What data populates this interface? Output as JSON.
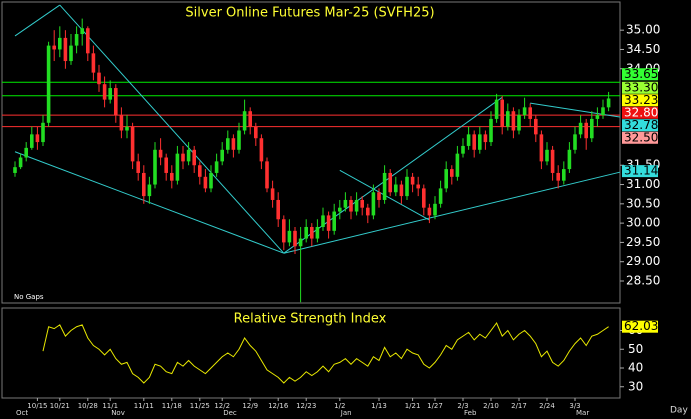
{
  "chart_data": {
    "type": "candlestick",
    "title": "Silver Online Futures Mar-25 (SVFH25)",
    "note": "No Gaps",
    "period": "Day",
    "up_color": "#22dd22",
    "down_color": "#ff3030",
    "trendline_color": "#33cccc",
    "ylim": [
      27.93,
      35.73
    ],
    "yticks": [
      {
        "value": 35,
        "label": "35.00"
      },
      {
        "value": 34.5,
        "label": "34.50"
      },
      {
        "value": 34,
        "label": "34.00"
      },
      {
        "value": 31.5,
        "label": "31.50"
      },
      {
        "value": 31,
        "label": "31.00"
      },
      {
        "value": 30.5,
        "label": "30.50"
      },
      {
        "value": 30,
        "label": "30.00"
      },
      {
        "value": 29.5,
        "label": "29.50"
      },
      {
        "value": 29,
        "label": "29.00"
      },
      {
        "value": 28.5,
        "label": "28.50"
      }
    ],
    "categories": [
      null,
      null,
      null,
      null,
      "10/15",
      null,
      null,
      null,
      "10/21",
      null,
      null,
      null,
      null,
      "10/28",
      null,
      null,
      null,
      "11/1",
      null,
      null,
      null,
      null,
      null,
      "11/11",
      null,
      null,
      null,
      null,
      "11/18",
      null,
      null,
      null,
      null,
      "11/25",
      null,
      null,
      null,
      "12/2",
      null,
      null,
      null,
      null,
      "12/9",
      null,
      null,
      null,
      null,
      "12/16",
      null,
      null,
      null,
      null,
      "12/23",
      null,
      null,
      null,
      null,
      null,
      "1/2",
      null,
      null,
      null,
      null,
      null,
      null,
      "1/13",
      null,
      null,
      null,
      null,
      null,
      "1/21",
      null,
      null,
      null,
      "1/27",
      null,
      null,
      null,
      null,
      "2/3",
      null,
      null,
      null,
      null,
      "2/10",
      null,
      null,
      null,
      null,
      "2/17",
      null,
      null,
      null,
      null,
      "2/24",
      null,
      null,
      null,
      null,
      "3/3",
      null,
      null,
      null,
      null,
      null,
      null
    ],
    "months": [
      "Oct",
      null,
      null,
      null,
      null,
      null,
      null,
      null,
      null,
      null,
      null,
      null,
      null,
      null,
      null,
      null,
      null,
      "Nov",
      null,
      null,
      null,
      null,
      null,
      null,
      null,
      null,
      null,
      null,
      null,
      null,
      null,
      null,
      null,
      null,
      null,
      null,
      null,
      "Dec",
      null,
      null,
      null,
      null,
      null,
      null,
      null,
      null,
      null,
      null,
      null,
      null,
      null,
      null,
      null,
      null,
      null,
      null,
      null,
      null,
      "Jan",
      null,
      null,
      null,
      null,
      null,
      null,
      null,
      null,
      null,
      null,
      null,
      null,
      null,
      null,
      null,
      null,
      null,
      null,
      null,
      null,
      null,
      "Feb",
      null,
      null,
      null,
      null,
      null,
      null,
      null,
      null,
      null,
      null,
      null,
      null,
      null,
      null,
      null,
      null,
      null,
      null,
      null,
      "Mar",
      null,
      null,
      null,
      null,
      null,
      null
    ],
    "ohlc": [
      [
        31.3,
        31.6,
        31.2,
        31.45
      ],
      [
        31.45,
        31.8,
        31.4,
        31.7
      ],
      [
        31.7,
        32.1,
        31.6,
        31.95
      ],
      [
        31.95,
        32.5,
        31.9,
        32.3
      ],
      [
        32.3,
        32.5,
        31.9,
        32.1
      ],
      [
        32.1,
        32.8,
        32.0,
        32.6
      ],
      [
        32.6,
        34.7,
        32.5,
        34.6
      ],
      [
        34.6,
        35.0,
        34.2,
        34.5
      ],
      [
        34.5,
        35.1,
        34.3,
        34.8
      ],
      [
        34.8,
        35.0,
        34.0,
        34.2
      ],
      [
        34.2,
        34.9,
        34.1,
        34.6
      ],
      [
        34.6,
        35.1,
        34.4,
        34.9
      ],
      [
        34.9,
        35.3,
        34.6,
        35.05
      ],
      [
        35.05,
        35.1,
        34.2,
        34.4
      ],
      [
        34.4,
        34.6,
        33.7,
        33.9
      ],
      [
        33.9,
        34.1,
        33.4,
        33.6
      ],
      [
        33.6,
        33.8,
        33.0,
        33.2
      ],
      [
        33.2,
        33.7,
        33.1,
        33.5
      ],
      [
        33.5,
        33.6,
        32.6,
        32.8
      ],
      [
        32.8,
        33.0,
        32.2,
        32.4
      ],
      [
        32.4,
        32.8,
        32.2,
        32.5
      ],
      [
        32.5,
        32.6,
        31.4,
        31.6
      ],
      [
        31.6,
        31.8,
        31.1,
        31.3
      ],
      [
        31.3,
        31.5,
        30.5,
        30.7
      ],
      [
        30.7,
        31.2,
        30.5,
        31.0
      ],
      [
        31.0,
        32.1,
        30.9,
        31.9
      ],
      [
        31.9,
        32.2,
        31.5,
        31.7
      ],
      [
        31.7,
        31.8,
        31.1,
        31.3
      ],
      [
        31.3,
        31.5,
        30.9,
        31.1
      ],
      [
        31.1,
        32.0,
        31.0,
        31.8
      ],
      [
        31.8,
        32.0,
        31.4,
        31.6
      ],
      [
        31.6,
        32.1,
        31.5,
        31.9
      ],
      [
        31.9,
        32.0,
        31.3,
        31.5
      ],
      [
        31.5,
        31.6,
        31.0,
        31.2
      ],
      [
        31.2,
        31.4,
        30.8,
        30.9
      ],
      [
        30.9,
        31.5,
        30.8,
        31.3
      ],
      [
        31.3,
        31.8,
        31.2,
        31.6
      ],
      [
        31.6,
        32.1,
        31.5,
        31.9
      ],
      [
        31.9,
        32.4,
        31.8,
        32.2
      ],
      [
        32.2,
        32.3,
        31.7,
        31.9
      ],
      [
        31.9,
        32.6,
        31.8,
        32.4
      ],
      [
        32.4,
        33.2,
        32.3,
        32.9
      ],
      [
        32.9,
        33.0,
        32.3,
        32.5
      ],
      [
        32.5,
        32.6,
        32.0,
        32.2
      ],
      [
        32.2,
        32.3,
        31.4,
        31.6
      ],
      [
        31.6,
        31.7,
        30.8,
        30.9
      ],
      [
        30.9,
        31.1,
        30.4,
        30.6
      ],
      [
        30.6,
        30.8,
        29.9,
        30.1
      ],
      [
        30.1,
        30.2,
        29.3,
        29.5
      ],
      [
        29.5,
        30.1,
        29.4,
        29.8
      ],
      [
        29.8,
        29.9,
        29.2,
        29.4
      ],
      [
        29.4,
        29.9,
        27.95,
        29.6
      ],
      [
        29.6,
        30.1,
        29.5,
        29.9
      ],
      [
        29.9,
        30.0,
        29.4,
        29.6
      ],
      [
        29.6,
        30.1,
        29.5,
        29.9
      ],
      [
        29.9,
        30.4,
        29.8,
        30.2
      ],
      [
        30.2,
        30.3,
        29.6,
        29.8
      ],
      [
        29.8,
        30.5,
        29.7,
        30.3
      ],
      [
        30.3,
        30.6,
        30.1,
        30.4
      ],
      [
        30.4,
        30.8,
        30.3,
        30.6
      ],
      [
        30.6,
        30.7,
        30.1,
        30.3
      ],
      [
        30.3,
        30.8,
        30.2,
        30.6
      ],
      [
        30.6,
        30.7,
        30.2,
        30.4
      ],
      [
        30.4,
        30.5,
        30.0,
        30.2
      ],
      [
        30.2,
        31.0,
        30.1,
        30.8
      ],
      [
        30.8,
        30.9,
        30.4,
        30.6
      ],
      [
        30.6,
        31.5,
        30.5,
        31.3
      ],
      [
        31.3,
        31.4,
        30.7,
        30.8
      ],
      [
        30.8,
        31.2,
        30.7,
        31.0
      ],
      [
        31.0,
        31.1,
        30.5,
        30.7
      ],
      [
        30.7,
        31.4,
        30.6,
        31.2
      ],
      [
        31.2,
        31.3,
        30.8,
        31.0
      ],
      [
        31.0,
        31.2,
        30.7,
        30.9
      ],
      [
        30.9,
        31.0,
        30.2,
        30.4
      ],
      [
        30.4,
        30.5,
        30.0,
        30.2
      ],
      [
        30.2,
        30.7,
        30.1,
        30.5
      ],
      [
        30.5,
        31.1,
        30.4,
        30.9
      ],
      [
        30.9,
        31.6,
        30.8,
        31.4
      ],
      [
        31.4,
        31.5,
        31.0,
        31.2
      ],
      [
        31.2,
        32.0,
        31.1,
        31.8
      ],
      [
        31.8,
        32.2,
        31.7,
        32.0
      ],
      [
        32.0,
        32.5,
        31.9,
        32.3
      ],
      [
        32.3,
        32.4,
        31.7,
        31.9
      ],
      [
        31.9,
        32.5,
        31.8,
        32.3
      ],
      [
        32.3,
        32.4,
        31.9,
        32.1
      ],
      [
        32.1,
        32.9,
        32.0,
        32.7
      ],
      [
        32.7,
        33.35,
        32.6,
        33.2
      ],
      [
        33.2,
        33.3,
        32.3,
        32.5
      ],
      [
        32.5,
        33.1,
        32.4,
        32.9
      ],
      [
        32.9,
        33.0,
        32.2,
        32.4
      ],
      [
        32.4,
        32.95,
        32.3,
        32.8
      ],
      [
        32.8,
        33.25,
        32.7,
        33.0
      ],
      [
        33.0,
        33.1,
        32.5,
        32.7
      ],
      [
        32.7,
        32.8,
        32.1,
        32.3
      ],
      [
        32.3,
        32.4,
        31.4,
        31.6
      ],
      [
        31.6,
        32.1,
        31.5,
        31.9
      ],
      [
        31.9,
        32.0,
        31.1,
        31.3
      ],
      [
        31.3,
        31.5,
        30.9,
        31.1
      ],
      [
        31.1,
        31.6,
        31.0,
        31.4
      ],
      [
        31.4,
        32.1,
        31.3,
        31.9
      ],
      [
        31.9,
        32.5,
        31.8,
        32.3
      ],
      [
        32.3,
        32.8,
        32.2,
        32.6
      ],
      [
        32.6,
        32.7,
        31.9,
        32.2
      ],
      [
        32.2,
        32.9,
        32.1,
        32.7
      ],
      [
        32.7,
        33.0,
        32.5,
        32.8
      ],
      [
        32.8,
        33.2,
        32.7,
        33.0
      ],
      [
        33.0,
        33.4,
        32.9,
        33.23
      ]
    ],
    "trendlines": [
      [
        [
          0,
          34.85
        ],
        [
          8,
          35.65
        ]
      ],
      [
        [
          8,
          35.65
        ],
        [
          48,
          29.22
        ]
      ],
      [
        [
          0,
          31.85
        ],
        [
          48,
          29.22
        ]
      ],
      [
        [
          48,
          29.22
        ],
        [
          87,
          33.26
        ]
      ],
      [
        [
          48,
          29.22
        ],
        [
          108,
          31.32
        ]
      ],
      [
        [
          92,
          33.11
        ],
        [
          108,
          32.75
        ]
      ],
      [
        [
          58,
          31.37
        ],
        [
          74,
          30.08
        ]
      ]
    ],
    "levels": [
      {
        "value": 33.65,
        "color": "#00ee00"
      },
      {
        "value": 33.3,
        "color": "#00ee00"
      },
      {
        "value": 32.8,
        "color": "#ff3030"
      },
      {
        "value": 32.5,
        "color": "#ff3030"
      }
    ],
    "price_labels": [
      {
        "value": 33.65,
        "label": "33.65",
        "color": "#33ff33",
        "text_color": "#000000"
      },
      {
        "value": 33.3,
        "label": "33.30",
        "color": "#99ff33",
        "text_color": "#000000"
      },
      {
        "value": 33.23,
        "label": "33.23",
        "color": "#ffff00",
        "text_color": "#000000"
      },
      {
        "value": 32.8,
        "label": "32.80",
        "color": "#ee1111",
        "text_color": "#ffffff"
      },
      {
        "value": 32.78,
        "label": "32.78",
        "color": "#33dddd",
        "text_color": "#000000"
      },
      {
        "value": 32.5,
        "label": "32.50",
        "color": "#ff9999",
        "text_color": "#000000"
      },
      {
        "value": 31.14,
        "label": "31.14",
        "color": "#33dddd",
        "text_color": "#000000"
      }
    ],
    "indicator": {
      "title": "Relative Strength Index",
      "color": "#e8e800",
      "ylim": [
        24,
        72
      ],
      "yticks": [
        60,
        50,
        40,
        30
      ],
      "values": [
        null,
        null,
        null,
        null,
        null,
        49,
        62,
        61,
        63,
        57,
        60,
        62,
        63,
        56,
        52,
        50,
        47,
        50,
        45,
        42,
        43,
        37,
        35,
        32,
        35,
        42,
        41,
        38,
        37,
        43,
        41,
        44,
        41,
        39,
        37,
        40,
        43,
        46,
        48,
        46,
        50,
        56,
        52,
        49,
        44,
        39,
        37,
        35,
        32,
        35,
        33,
        35,
        38,
        36,
        38,
        41,
        38,
        42,
        43,
        45,
        42,
        45,
        43,
        41,
        46,
        44,
        51,
        46,
        48,
        45,
        50,
        48,
        47,
        42,
        40,
        43,
        47,
        52,
        50,
        55,
        57,
        59,
        55,
        58,
        56,
        60,
        64,
        57,
        60,
        55,
        58,
        60,
        57,
        53,
        46,
        49,
        43,
        41,
        44,
        49,
        53,
        56,
        52,
        57,
        58,
        60,
        62.03
      ],
      "last_label": "62.03"
    }
  }
}
